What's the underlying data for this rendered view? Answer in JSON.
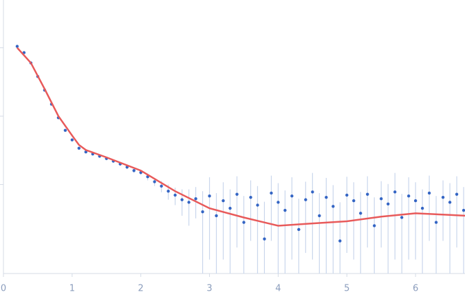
{
  "chart_data": {
    "type": "scatter",
    "xlim": [
      0,
      6.72
    ],
    "xticks": [
      0,
      1,
      2,
      3,
      4,
      5,
      6
    ],
    "ylim": [
      0.0005,
      5
    ],
    "yticks": [
      0.01,
      0.1,
      1
    ],
    "log_y": true,
    "series": [
      {
        "type": "scatter",
        "color": "#3465c4",
        "error_color": "#c9d6ec",
        "x": [
          0.2,
          0.3,
          0.4,
          0.5,
          0.6,
          0.7,
          0.8,
          0.9,
          1.0,
          1.1,
          1.2,
          1.3,
          1.4,
          1.5,
          1.6,
          1.7,
          1.8,
          1.9,
          2.0,
          2.1,
          2.2,
          2.3,
          2.4,
          2.5,
          2.6,
          2.7,
          2.8,
          2.9,
          3.0,
          3.1,
          3.2,
          3.3,
          3.4,
          3.5,
          3.6,
          3.7,
          3.8,
          3.9,
          4.0,
          4.1,
          4.2,
          4.3,
          4.4,
          4.5,
          4.6,
          4.7,
          4.8,
          4.9,
          5.0,
          5.1,
          5.2,
          5.3,
          5.4,
          5.5,
          5.6,
          5.7,
          5.8,
          5.9,
          6.0,
          6.1,
          6.2,
          6.3,
          6.4,
          6.5,
          6.6,
          6.7
        ],
        "values": [
          1.05,
          0.85,
          0.6,
          0.38,
          0.24,
          0.15,
          0.095,
          0.062,
          0.045,
          0.034,
          0.03,
          0.028,
          0.026,
          0.024,
          0.022,
          0.02,
          0.018,
          0.016,
          0.015,
          0.013,
          0.011,
          0.0095,
          0.008,
          0.007,
          0.006,
          0.0055,
          0.0062,
          0.004,
          0.0068,
          0.0035,
          0.0058,
          0.0045,
          0.0072,
          0.0028,
          0.0065,
          0.005,
          0.0016,
          0.0075,
          0.0055,
          0.0042,
          0.0068,
          0.0022,
          0.006,
          0.0078,
          0.0035,
          0.0065,
          0.0048,
          0.0015,
          0.007,
          0.0058,
          0.0038,
          0.0072,
          0.0025,
          0.0062,
          0.0052,
          0.0078,
          0.0033,
          0.0068,
          0.0058,
          0.0045,
          0.0075,
          0.0028,
          0.0065,
          0.0055,
          0.0072,
          0.0042
        ],
        "errors": [
          0.03,
          0.02,
          0.015,
          0.01,
          0.006,
          0.004,
          0.003,
          0.002,
          0.0015,
          0.0015,
          0.0015,
          0.0014,
          0.0014,
          0.0013,
          0.0013,
          0.0012,
          0.0012,
          0.0012,
          0.0012,
          0.0015,
          0.0015,
          0.0018,
          0.002,
          0.002,
          0.0025,
          0.003,
          0.003,
          0.004,
          0.006,
          0.004,
          0.005,
          0.004,
          0.006,
          0.004,
          0.005,
          0.0045,
          0.004,
          0.006,
          0.005,
          0.004,
          0.006,
          0.004,
          0.005,
          0.007,
          0.004,
          0.006,
          0.005,
          0.004,
          0.006,
          0.005,
          0.004,
          0.006,
          0.004,
          0.005,
          0.005,
          0.007,
          0.004,
          0.006,
          0.005,
          0.004,
          0.006,
          0.004,
          0.005,
          0.005,
          0.006,
          0.005
        ]
      },
      {
        "type": "line",
        "color": "#e85a5a",
        "x": [
          0.2,
          0.4,
          0.6,
          0.8,
          1.0,
          1.1,
          1.2,
          1.5,
          2.0,
          2.5,
          3.0,
          3.5,
          4.0,
          4.5,
          5.0,
          5.5,
          6.0,
          6.5,
          6.72
        ],
        "values": [
          1.0,
          0.6,
          0.25,
          0.1,
          0.052,
          0.038,
          0.032,
          0.025,
          0.016,
          0.008,
          0.0045,
          0.0033,
          0.0025,
          0.0027,
          0.0029,
          0.0034,
          0.0038,
          0.0036,
          0.0035
        ]
      }
    ]
  }
}
